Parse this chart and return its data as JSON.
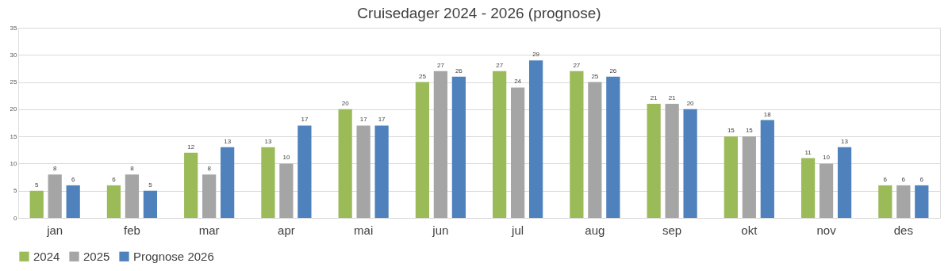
{
  "chart_data": {
    "type": "bar",
    "title": "Cruisedager 2024 - 2026 (prognose)",
    "categories": [
      "jan",
      "feb",
      "mar",
      "apr",
      "mai",
      "jun",
      "jul",
      "aug",
      "sep",
      "okt",
      "nov",
      "des"
    ],
    "series": [
      {
        "name": "2024",
        "color": "#9bbb59",
        "values": [
          5,
          6,
          12,
          13,
          20,
          25,
          27,
          27,
          21,
          15,
          11,
          6
        ]
      },
      {
        "name": "2025",
        "color": "#a5a5a5",
        "values": [
          8,
          8,
          8,
          10,
          17,
          27,
          24,
          25,
          21,
          15,
          10,
          6
        ]
      },
      {
        "name": "Prognose 2026",
        "color": "#4f81bd",
        "values": [
          6,
          5,
          13,
          17,
          17,
          26,
          29,
          26,
          20,
          18,
          13,
          6
        ]
      }
    ],
    "ylim": [
      0,
      35
    ],
    "yticks": [
      0,
      5,
      10,
      15,
      20,
      25,
      30,
      35
    ],
    "grid": "y",
    "legend": "bottom",
    "data_labels": true
  }
}
